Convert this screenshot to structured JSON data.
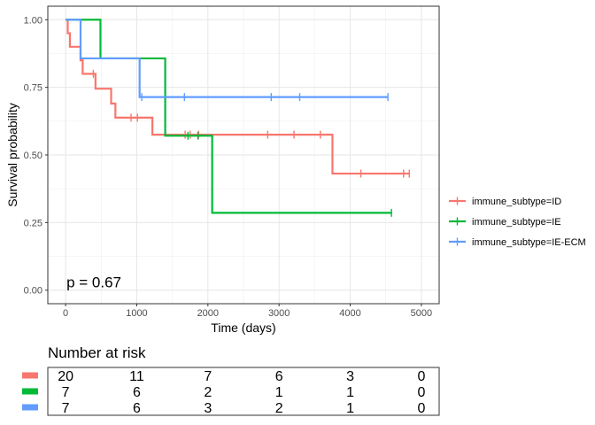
{
  "chart_data": {
    "type": "line",
    "subtype": "kaplan-meier survival",
    "xlabel": "Time (days)",
    "ylabel": "Survival probability",
    "xlim": [
      -250,
      5250
    ],
    "ylim": [
      -0.05,
      1.05
    ],
    "x_ticks": [
      0,
      1000,
      2000,
      3000,
      4000,
      5000
    ],
    "x_tick_labels": [
      "0",
      "1000",
      "2000",
      "3000",
      "4000",
      "5000"
    ],
    "y_ticks": [
      0,
      0.25,
      0.5,
      0.75,
      1.0
    ],
    "y_tick_labels": [
      "0.00",
      "0.25",
      "0.50",
      "0.75",
      "1.00"
    ],
    "grid": true,
    "legend_position": "right",
    "annotation": "p = 0.67",
    "series": [
      {
        "name": "immune_subtype=ID",
        "color": "#F8766D",
        "steps": [
          [
            0,
            1.0
          ],
          [
            30,
            0.95
          ],
          [
            60,
            0.9
          ],
          [
            210,
            0.85
          ],
          [
            240,
            0.8
          ],
          [
            420,
            0.745
          ],
          [
            640,
            0.69
          ],
          [
            700,
            0.638
          ],
          [
            1220,
            0.575
          ],
          [
            3750,
            0.575
          ],
          [
            3750,
            0.431
          ],
          [
            4840,
            0.431
          ]
        ],
        "censor_times": [
          390,
          920,
          1010,
          1680,
          1750,
          1870,
          2840,
          3210,
          3580,
          4150,
          4750,
          4830
        ],
        "risk": [
          20,
          11,
          7,
          6,
          3,
          0
        ]
      },
      {
        "name": "immune_subtype=IE",
        "color": "#00BA38",
        "steps": [
          [
            0,
            1.0
          ],
          [
            490,
            0.857
          ],
          [
            1400,
            0.571
          ],
          [
            2060,
            0.286
          ],
          [
            4580,
            0.286
          ]
        ],
        "censor_times": [
          1720,
          1860,
          4580
        ],
        "risk": [
          7,
          6,
          2,
          1,
          1,
          0
        ]
      },
      {
        "name": "immune_subtype=IE-ECM",
        "color": "#619CFF",
        "steps": [
          [
            0,
            1.0
          ],
          [
            210,
            0.857
          ],
          [
            1040,
            0.714
          ],
          [
            4530,
            0.714
          ]
        ],
        "censor_times": [
          1070,
          1670,
          2890,
          3290,
          4530
        ],
        "risk": [
          7,
          6,
          3,
          2,
          1,
          0
        ]
      }
    ],
    "risk_table": {
      "title": "Number at risk",
      "times": [
        0,
        1000,
        2000,
        3000,
        4000,
        5000
      ]
    }
  }
}
